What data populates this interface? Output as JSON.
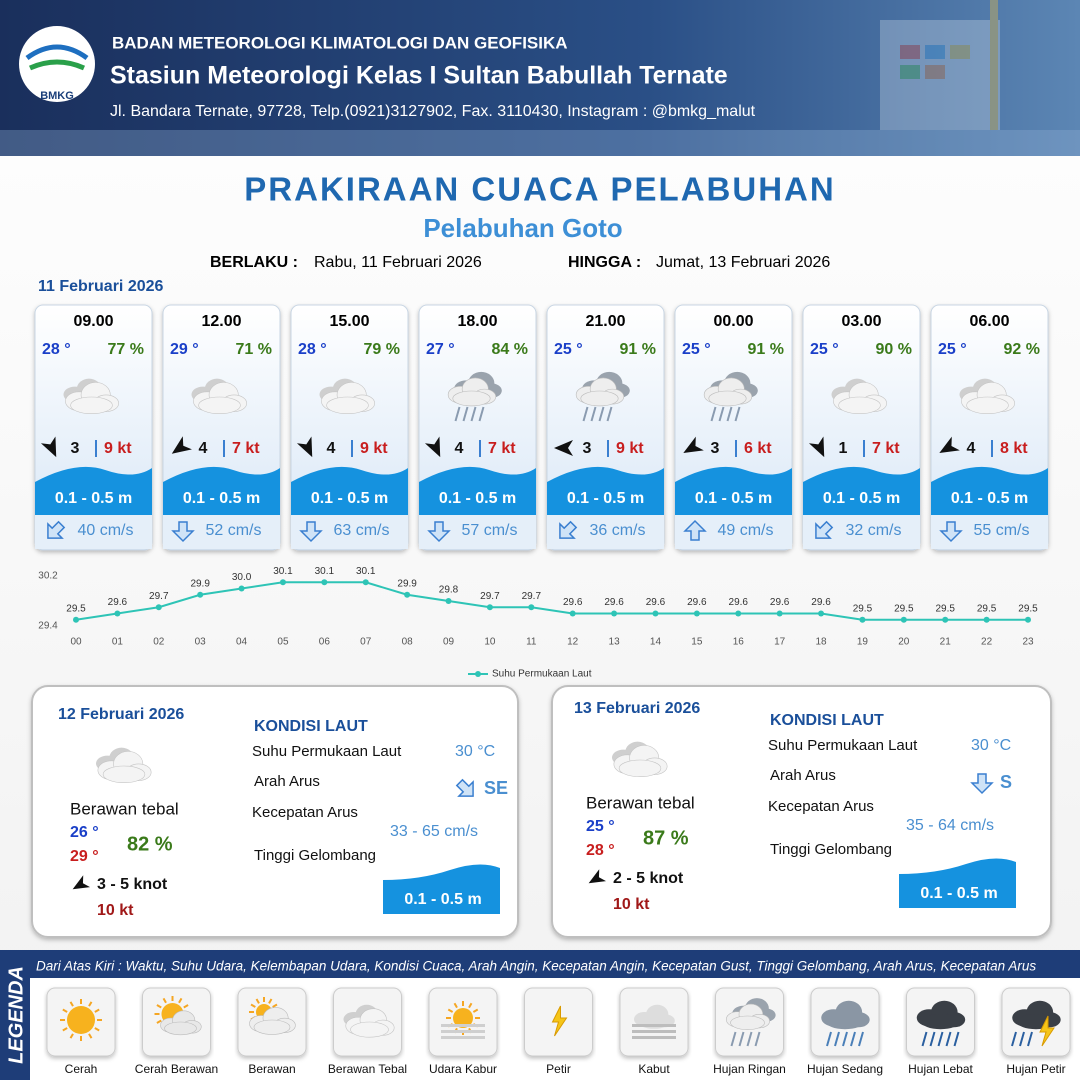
{
  "header": {
    "logo": "BMKG",
    "org": "BADAN METEOROLOGI KLIMATOLOGI DAN GEOFISIKA",
    "station": "Stasiun Meteorologi Kelas I Sultan Babullah Ternate",
    "address": "Jl. Bandara Ternate, 97728, Telp.(0921)3127902, Fax. 3110430, Instagram : @bmkg_malut"
  },
  "title": "PRAKIRAAN CUACA PELABUHAN",
  "subtitle": "Pelabuhan Goto",
  "validity": {
    "from_label": "BERLAKU :",
    "from": "Rabu, 11 Februari 2026",
    "to_label": "HINGGA :",
    "to": "Jumat, 13 Februari 2026"
  },
  "day1": {
    "date": "11 Februari 2026",
    "cards": [
      {
        "time": "09.00",
        "temp": "28 °",
        "rh": "77 %",
        "weather": "Berawan Tebal",
        "wind": "3",
        "gust": "9 kt",
        "wave": "0.1 - 0.5 m",
        "current": "40 cm/s"
      },
      {
        "time": "12.00",
        "temp": "29 °",
        "rh": "71 %",
        "weather": "Berawan Tebal",
        "wind": "4",
        "gust": "7 kt",
        "wave": "0.1 - 0.5 m",
        "current": "52 cm/s"
      },
      {
        "time": "15.00",
        "temp": "28 °",
        "rh": "79 %",
        "weather": "Berawan Tebal",
        "wind": "4",
        "gust": "9 kt",
        "wave": "0.1 - 0.5 m",
        "current": "63 cm/s"
      },
      {
        "time": "18.00",
        "temp": "27 °",
        "rh": "84 %",
        "weather": "Hujan Ringan",
        "wind": "4",
        "gust": "7 kt",
        "wave": "0.1 - 0.5 m",
        "current": "57 cm/s"
      },
      {
        "time": "21.00",
        "temp": "25 °",
        "rh": "91 %",
        "weather": "Hujan Ringan",
        "wind": "3",
        "gust": "9 kt",
        "wave": "0.1 - 0.5 m",
        "current": "36 cm/s"
      },
      {
        "time": "00.00",
        "temp": "25 °",
        "rh": "91 %",
        "weather": "Hujan Ringan",
        "wind": "3",
        "gust": "6 kt",
        "wave": "0.1 - 0.5 m",
        "current": "49 cm/s"
      },
      {
        "time": "03.00",
        "temp": "25 °",
        "rh": "90 %",
        "weather": "Berawan Tebal",
        "wind": "1",
        "gust": "7 kt",
        "wave": "0.1 - 0.5 m",
        "current": "32 cm/s"
      },
      {
        "time": "06.00",
        "temp": "25 °",
        "rh": "92 %",
        "weather": "Berawan Tebal",
        "wind": "4",
        "gust": "8 kt",
        "wave": "0.1 - 0.5 m",
        "current": "55 cm/s"
      }
    ]
  },
  "chart_data": {
    "type": "line",
    "categories": [
      "00",
      "01",
      "02",
      "03",
      "04",
      "05",
      "06",
      "07",
      "08",
      "09",
      "10",
      "11",
      "12",
      "13",
      "14",
      "15",
      "16",
      "17",
      "18",
      "19",
      "20",
      "21",
      "22",
      "23"
    ],
    "series": [
      {
        "name": "Suhu Permukaan Laut",
        "color": "#2ec4b6",
        "values": [
          29.5,
          29.6,
          29.7,
          29.9,
          30.0,
          30.1,
          30.1,
          30.1,
          29.9,
          29.8,
          29.7,
          29.7,
          29.6,
          29.6,
          29.6,
          29.6,
          29.6,
          29.6,
          29.6,
          29.5,
          29.5,
          29.5,
          29.5,
          29.5
        ],
        "value_labels": [
          "29.5",
          "29.6",
          "29.7",
          "29.9",
          "30.0",
          "30.1",
          "30.1",
          "30.1",
          "29.9",
          "29.8",
          "29.7",
          "29.7",
          "29.6",
          "29.6",
          "29.6",
          "29.6",
          "29.6",
          "29.6",
          "29.6",
          "29.5",
          "29.5",
          "29.5",
          "29.5",
          "29.5"
        ]
      }
    ],
    "ylim": [
      29.4,
      30.2
    ],
    "yticks": [
      29.4,
      30.2
    ],
    "grid": false,
    "legend": "bottom"
  },
  "days": [
    {
      "date": "12 Februari 2026",
      "weather": "Berawan tebal",
      "tmin": "26 °",
      "tmax": "29 °",
      "rh": "82 %",
      "wind": "3  - 5 knot",
      "gust": "10 kt",
      "sea_title": "KONDISI LAUT",
      "sst_label": "Suhu Permukaan Laut",
      "sst": "30 °C",
      "dir_label": "Arah Arus",
      "dir": "SE",
      "speed_label": "Kecepatan Arus",
      "speed": "33  - 65 cm/s",
      "wave_label": "Tinggi Gelombang",
      "wave": "0.1 - 0.5 m"
    },
    {
      "date": "13 Februari 2026",
      "weather": "Berawan tebal",
      "tmin": "25 °",
      "tmax": "28 °",
      "rh": "87 %",
      "wind": "2  - 5 knot",
      "gust": "10 kt",
      "sea_title": "KONDISI LAUT",
      "sst_label": "Suhu Permukaan Laut",
      "sst": "30 °C",
      "dir_label": "Arah Arus",
      "dir": "S",
      "speed_label": "Kecepatan Arus",
      "speed": "35  - 64 cm/s",
      "wave_label": "Tinggi Gelombang",
      "wave": "0.1 - 0.5 m"
    }
  ],
  "legend": {
    "title": "LEGENDA",
    "description": "Dari Atas Kiri : Waktu, Suhu Udara, Kelembapan Udara, Kondisi Cuaca, Arah Angin, Kecepatan Angin, Kecepatan Gust, Tinggi Gelombang, Arah Arus, Kecepatan Arus",
    "items": [
      "Cerah",
      "Cerah Berawan",
      "Berawan",
      "Berawan Tebal",
      "Udara Kabur",
      "Petir",
      "Kabut",
      "Hujan Ringan",
      "Hujan Sedang",
      "Hujan Lebat",
      "Hujan Petir"
    ]
  }
}
